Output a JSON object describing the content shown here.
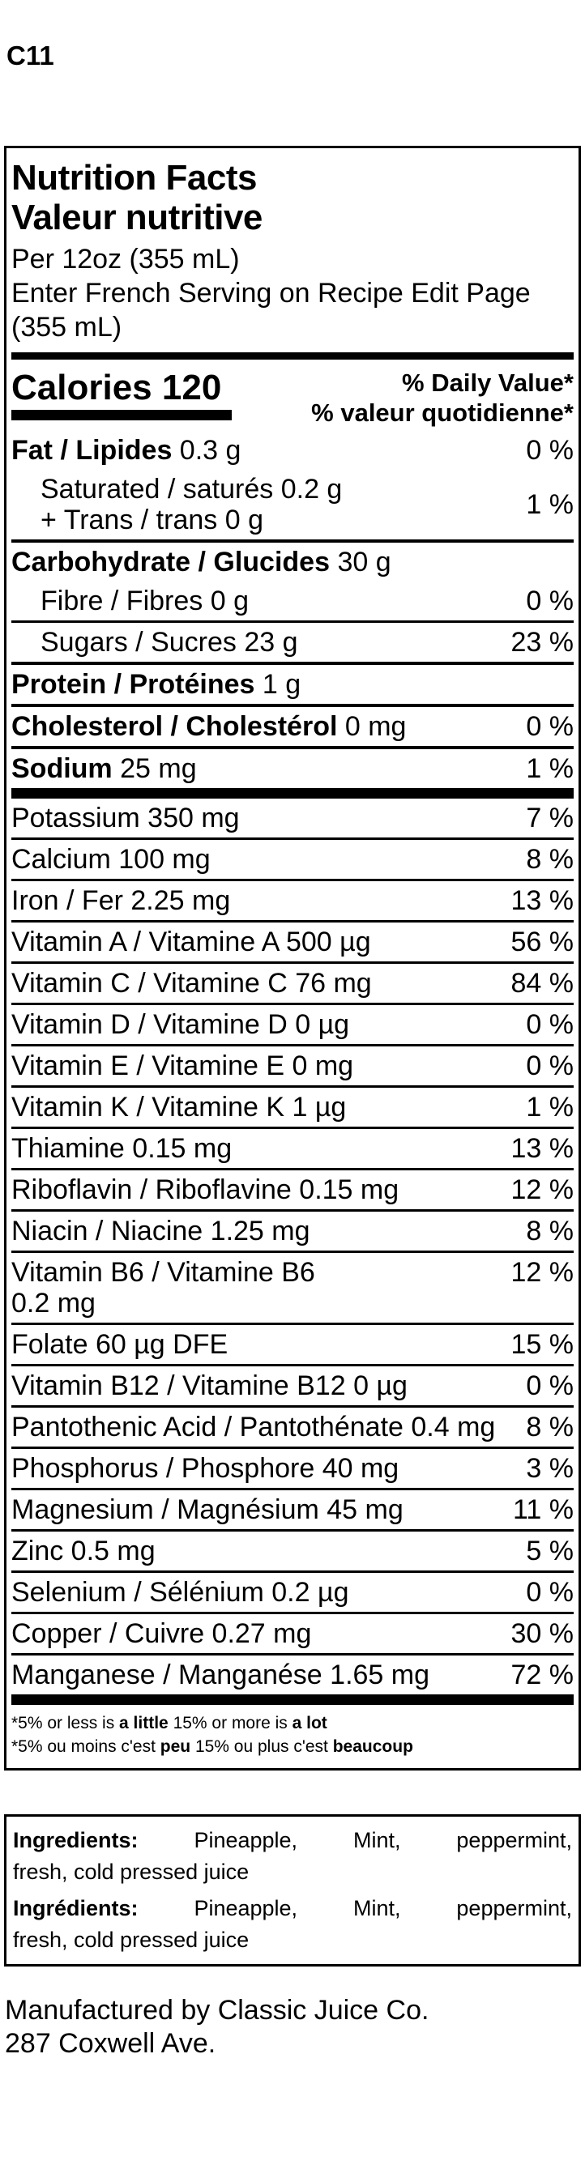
{
  "page": {
    "code": "C11",
    "manufacturer_line1": "Manufactured by Classic Juice Co.",
    "manufacturer_line2": "287 Coxwell Ave."
  },
  "label": {
    "title_en": "Nutrition Facts",
    "title_fr": "Valeur nutritive",
    "serving_line1": "Per 12oz (355 mL)",
    "serving_line2": "Enter French Serving on Recipe Edit Page (355 mL)",
    "calories_word": "Calories",
    "calories_value": "120",
    "dv_header_en": "% Daily Value*",
    "dv_header_fr": "% valeur quotidienne*",
    "rows": [
      {
        "bold": "Fat / Lipides",
        "rest": "0.3 g",
        "dv": "0 %",
        "indent": false,
        "rule": "none"
      },
      {
        "lines": [
          "Saturated / saturés 0.2 g",
          "+ Trans / trans 0 g"
        ],
        "dv": "1 %",
        "indent": true,
        "rule": "group"
      },
      {
        "bold": "Carbohydrate / Glucides",
        "rest": "30 g",
        "dv": "",
        "indent": false,
        "rule": "none"
      },
      {
        "plain": "Fibre / Fibres 0 g",
        "dv": "0 %",
        "indent": true,
        "rule": "thin"
      },
      {
        "plain": "Sugars / Sucres 23 g",
        "dv": "23 %",
        "indent": true,
        "rule": "group"
      },
      {
        "bold": "Protein / Protéines",
        "rest": "1 g",
        "dv": "",
        "indent": false,
        "rule": "group"
      },
      {
        "bold": "Cholesterol / Cholestérol",
        "rest": "0 mg",
        "dv": "0 %",
        "indent": false,
        "rule": "group"
      },
      {
        "bold": "Sodium",
        "rest": "25 mg",
        "dv": "1 %",
        "indent": false,
        "rule": "bar"
      },
      {
        "plain": "Potassium 350 mg",
        "dv": "7 %",
        "indent": false,
        "rule": "thin"
      },
      {
        "plain": "Calcium 100 mg",
        "dv": "8 %",
        "indent": false,
        "rule": "thin"
      },
      {
        "plain": "Iron / Fer 2.25 mg",
        "dv": "13 %",
        "indent": false,
        "rule": "thin"
      },
      {
        "plain": "Vitamin A / Vitamine A 500 µg",
        "dv": "56 %",
        "indent": false,
        "rule": "thin"
      },
      {
        "plain": "Vitamin C / Vitamine C 76 mg",
        "dv": "84 %",
        "indent": false,
        "rule": "thin"
      },
      {
        "plain": "Vitamin D / Vitamine D 0 µg",
        "dv": "0 %",
        "indent": false,
        "rule": "thin"
      },
      {
        "plain": "Vitamin E / Vitamine E 0 mg",
        "dv": "0 %",
        "indent": false,
        "rule": "thin"
      },
      {
        "plain": "Vitamin K / Vitamine K 1 µg",
        "dv": "1 %",
        "indent": false,
        "rule": "thin"
      },
      {
        "plain": "Thiamine 0.15 mg",
        "dv": "13 %",
        "indent": false,
        "rule": "thin"
      },
      {
        "plain": "Riboflavin / Riboflavine 0.15 mg",
        "dv": "12 %",
        "indent": false,
        "rule": "thin"
      },
      {
        "plain": "Niacin / Niacine 1.25 mg",
        "dv": "8 %",
        "indent": false,
        "rule": "thin"
      },
      {
        "lines": [
          "Vitamin B6 / Vitamine B6",
          "0.2 mg"
        ],
        "dv": "12 %",
        "indent": false,
        "rule": "thin",
        "dv_top": true
      },
      {
        "plain": "Folate 60 µg DFE",
        "dv": "15 %",
        "indent": false,
        "rule": "thin"
      },
      {
        "plain": "Vitamin B12 / Vitamine B12 0 µg",
        "dv": "0 %",
        "indent": false,
        "rule": "thin"
      },
      {
        "plain": "Pantothenic Acid / Pantothénate 0.4 mg",
        "dv": "8 %",
        "indent": false,
        "rule": "thin"
      },
      {
        "plain": "Phosphorus / Phosphore 40 mg",
        "dv": "3 %",
        "indent": false,
        "rule": "thin"
      },
      {
        "plain": "Magnesium / Magnésium 45 mg",
        "dv": "11 %",
        "indent": false,
        "rule": "thin"
      },
      {
        "plain": "Zinc 0.5 mg",
        "dv": "5 %",
        "indent": false,
        "rule": "thin"
      },
      {
        "plain": "Selenium / Sélénium 0.2 µg",
        "dv": "0 %",
        "indent": false,
        "rule": "thin"
      },
      {
        "plain": "Copper / Cuivre 0.27 mg",
        "dv": "30 %",
        "indent": false,
        "rule": "thin"
      },
      {
        "plain": "Manganese / Manganése 1.65 mg",
        "dv": "72 %",
        "indent": false,
        "rule": "bar"
      }
    ],
    "footnotes": [
      {
        "parts": [
          {
            "t": "*5% or less is ",
            "b": false
          },
          {
            "t": "a little",
            "b": true
          },
          {
            "t": " 15% or more is ",
            "b": false
          },
          {
            "t": "a lot",
            "b": true
          }
        ]
      },
      {
        "parts": [
          {
            "t": "*5% ou moins c'est ",
            "b": false
          },
          {
            "t": "peu",
            "b": true
          },
          {
            "t": " 15% ou plus c'est ",
            "b": false
          },
          {
            "t": "beaucoup",
            "b": true
          }
        ]
      }
    ]
  },
  "ingredients": {
    "paragraphs": [
      {
        "line1_parts": [
          {
            "t": "Ingredients:",
            "b": true
          },
          {
            "t": " Pineapple, Mint, peppermint,",
            "b": false
          }
        ],
        "line2": "fresh, cold pressed juice"
      },
      {
        "line1_parts": [
          {
            "t": "Ingrédients:",
            "b": true
          },
          {
            "t": " Pineapple, Mint, peppermint,",
            "b": false
          }
        ],
        "line2": "fresh, cold pressed juice"
      }
    ]
  }
}
